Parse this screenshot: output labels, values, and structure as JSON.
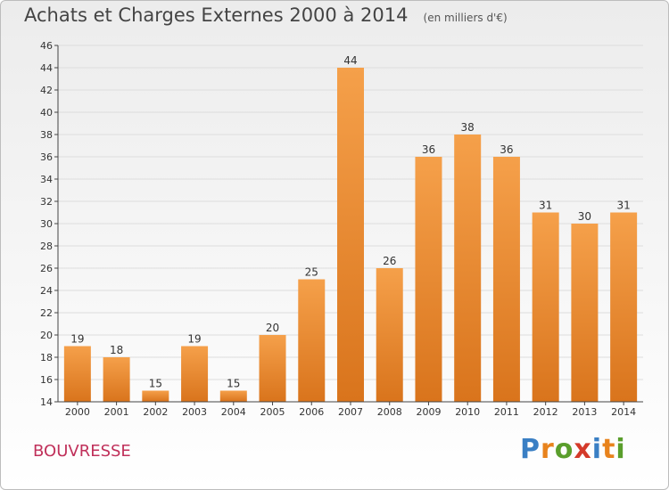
{
  "title": "Achats et Charges Externes 2000 à 2014",
  "units": "(en milliers d'€)",
  "town": "BOUVRESSE",
  "logo": {
    "letters": [
      "P",
      "r",
      "o",
      "x",
      "i",
      "t",
      "i"
    ],
    "colors": [
      "#3a7fc4",
      "#e8831d",
      "#5a9e2c",
      "#d43a2a",
      "#3a7fc4",
      "#e8831d",
      "#5a9e2c"
    ]
  },
  "colors": {
    "bar_top": "#f5a04a",
    "bar_bottom": "#d9741c",
    "grid": "#dddddd",
    "axis": "#444444",
    "text": "#333333"
  },
  "chart_data": {
    "type": "bar",
    "title": "Achats et Charges Externes 2000 à 2014",
    "subtitle": "(en milliers d'€)",
    "categories": [
      "2000",
      "2001",
      "2002",
      "2003",
      "2004",
      "2005",
      "2006",
      "2007",
      "2008",
      "2009",
      "2010",
      "2011",
      "2012",
      "2013",
      "2014"
    ],
    "values": [
      19,
      18,
      15,
      19,
      15,
      20,
      25,
      44,
      26,
      36,
      38,
      36,
      31,
      30,
      31
    ],
    "ylim": [
      14,
      46
    ],
    "yticks": [
      14,
      16,
      18,
      20,
      22,
      24,
      26,
      28,
      30,
      32,
      34,
      36,
      38,
      40,
      42,
      44,
      46
    ],
    "xlabel": "",
    "ylabel": "",
    "grid": true
  }
}
